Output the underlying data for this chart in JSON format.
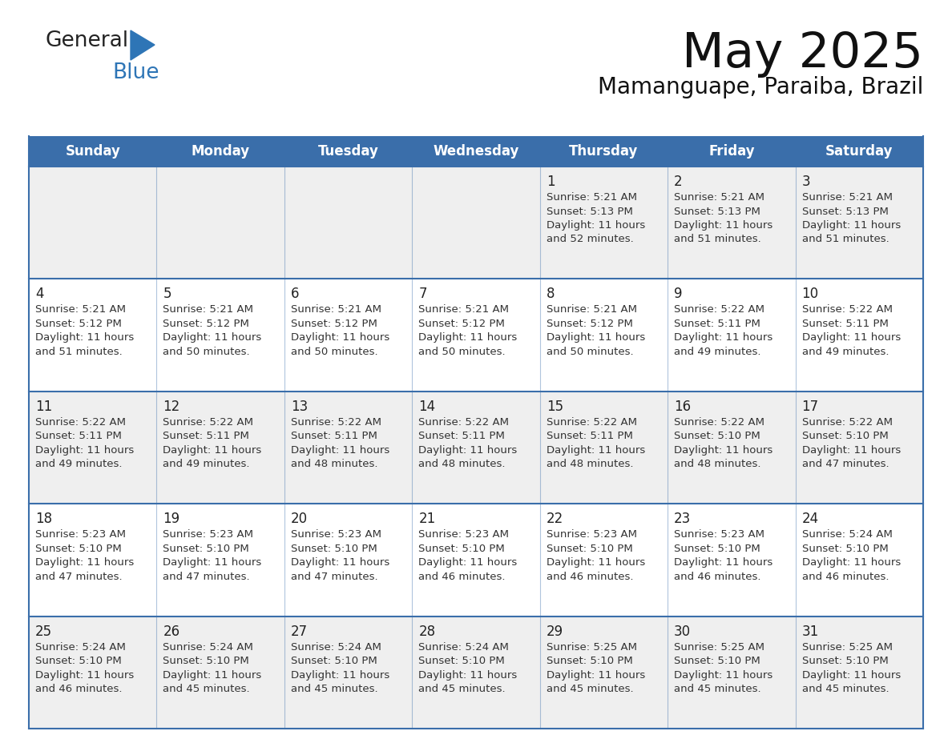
{
  "title": "May 2025",
  "subtitle": "Mamanguape, Paraiba, Brazil",
  "days_of_week": [
    "Sunday",
    "Monday",
    "Tuesday",
    "Wednesday",
    "Thursday",
    "Friday",
    "Saturday"
  ],
  "header_bg": "#3A6EAA",
  "header_text": "#FFFFFF",
  "row_bg_odd": "#EFEFEF",
  "row_bg_even": "#FFFFFF",
  "cell_border": "#3A6EAA",
  "day_number_color": "#222222",
  "text_color": "#333333",
  "title_color": "#111111",
  "subtitle_color": "#111111",
  "logo_general_color": "#222222",
  "logo_blue_color": "#2E75B6",
  "calendar": [
    [
      {
        "day": "",
        "sunrise": "",
        "sunset": "",
        "daylight": ""
      },
      {
        "day": "",
        "sunrise": "",
        "sunset": "",
        "daylight": ""
      },
      {
        "day": "",
        "sunrise": "",
        "sunset": "",
        "daylight": ""
      },
      {
        "day": "",
        "sunrise": "",
        "sunset": "",
        "daylight": ""
      },
      {
        "day": "1",
        "sunrise": "5:21 AM",
        "sunset": "5:13 PM",
        "daylight_line1": "Daylight: 11 hours",
        "daylight_line2": "and 52 minutes."
      },
      {
        "day": "2",
        "sunrise": "5:21 AM",
        "sunset": "5:13 PM",
        "daylight_line1": "Daylight: 11 hours",
        "daylight_line2": "and 51 minutes."
      },
      {
        "day": "3",
        "sunrise": "5:21 AM",
        "sunset": "5:13 PM",
        "daylight_line1": "Daylight: 11 hours",
        "daylight_line2": "and 51 minutes."
      }
    ],
    [
      {
        "day": "4",
        "sunrise": "5:21 AM",
        "sunset": "5:12 PM",
        "daylight_line1": "Daylight: 11 hours",
        "daylight_line2": "and 51 minutes."
      },
      {
        "day": "5",
        "sunrise": "5:21 AM",
        "sunset": "5:12 PM",
        "daylight_line1": "Daylight: 11 hours",
        "daylight_line2": "and 50 minutes."
      },
      {
        "day": "6",
        "sunrise": "5:21 AM",
        "sunset": "5:12 PM",
        "daylight_line1": "Daylight: 11 hours",
        "daylight_line2": "and 50 minutes."
      },
      {
        "day": "7",
        "sunrise": "5:21 AM",
        "sunset": "5:12 PM",
        "daylight_line1": "Daylight: 11 hours",
        "daylight_line2": "and 50 minutes."
      },
      {
        "day": "8",
        "sunrise": "5:21 AM",
        "sunset": "5:12 PM",
        "daylight_line1": "Daylight: 11 hours",
        "daylight_line2": "and 50 minutes."
      },
      {
        "day": "9",
        "sunrise": "5:22 AM",
        "sunset": "5:11 PM",
        "daylight_line1": "Daylight: 11 hours",
        "daylight_line2": "and 49 minutes."
      },
      {
        "day": "10",
        "sunrise": "5:22 AM",
        "sunset": "5:11 PM",
        "daylight_line1": "Daylight: 11 hours",
        "daylight_line2": "and 49 minutes."
      }
    ],
    [
      {
        "day": "11",
        "sunrise": "5:22 AM",
        "sunset": "5:11 PM",
        "daylight_line1": "Daylight: 11 hours",
        "daylight_line2": "and 49 minutes."
      },
      {
        "day": "12",
        "sunrise": "5:22 AM",
        "sunset": "5:11 PM",
        "daylight_line1": "Daylight: 11 hours",
        "daylight_line2": "and 49 minutes."
      },
      {
        "day": "13",
        "sunrise": "5:22 AM",
        "sunset": "5:11 PM",
        "daylight_line1": "Daylight: 11 hours",
        "daylight_line2": "and 48 minutes."
      },
      {
        "day": "14",
        "sunrise": "5:22 AM",
        "sunset": "5:11 PM",
        "daylight_line1": "Daylight: 11 hours",
        "daylight_line2": "and 48 minutes."
      },
      {
        "day": "15",
        "sunrise": "5:22 AM",
        "sunset": "5:11 PM",
        "daylight_line1": "Daylight: 11 hours",
        "daylight_line2": "and 48 minutes."
      },
      {
        "day": "16",
        "sunrise": "5:22 AM",
        "sunset": "5:10 PM",
        "daylight_line1": "Daylight: 11 hours",
        "daylight_line2": "and 48 minutes."
      },
      {
        "day": "17",
        "sunrise": "5:22 AM",
        "sunset": "5:10 PM",
        "daylight_line1": "Daylight: 11 hours",
        "daylight_line2": "and 47 minutes."
      }
    ],
    [
      {
        "day": "18",
        "sunrise": "5:23 AM",
        "sunset": "5:10 PM",
        "daylight_line1": "Daylight: 11 hours",
        "daylight_line2": "and 47 minutes."
      },
      {
        "day": "19",
        "sunrise": "5:23 AM",
        "sunset": "5:10 PM",
        "daylight_line1": "Daylight: 11 hours",
        "daylight_line2": "and 47 minutes."
      },
      {
        "day": "20",
        "sunrise": "5:23 AM",
        "sunset": "5:10 PM",
        "daylight_line1": "Daylight: 11 hours",
        "daylight_line2": "and 47 minutes."
      },
      {
        "day": "21",
        "sunrise": "5:23 AM",
        "sunset": "5:10 PM",
        "daylight_line1": "Daylight: 11 hours",
        "daylight_line2": "and 46 minutes."
      },
      {
        "day": "22",
        "sunrise": "5:23 AM",
        "sunset": "5:10 PM",
        "daylight_line1": "Daylight: 11 hours",
        "daylight_line2": "and 46 minutes."
      },
      {
        "day": "23",
        "sunrise": "5:23 AM",
        "sunset": "5:10 PM",
        "daylight_line1": "Daylight: 11 hours",
        "daylight_line2": "and 46 minutes."
      },
      {
        "day": "24",
        "sunrise": "5:24 AM",
        "sunset": "5:10 PM",
        "daylight_line1": "Daylight: 11 hours",
        "daylight_line2": "and 46 minutes."
      }
    ],
    [
      {
        "day": "25",
        "sunrise": "5:24 AM",
        "sunset": "5:10 PM",
        "daylight_line1": "Daylight: 11 hours",
        "daylight_line2": "and 46 minutes."
      },
      {
        "day": "26",
        "sunrise": "5:24 AM",
        "sunset": "5:10 PM",
        "daylight_line1": "Daylight: 11 hours",
        "daylight_line2": "and 45 minutes."
      },
      {
        "day": "27",
        "sunrise": "5:24 AM",
        "sunset": "5:10 PM",
        "daylight_line1": "Daylight: 11 hours",
        "daylight_line2": "and 45 minutes."
      },
      {
        "day": "28",
        "sunrise": "5:24 AM",
        "sunset": "5:10 PM",
        "daylight_line1": "Daylight: 11 hours",
        "daylight_line2": "and 45 minutes."
      },
      {
        "day": "29",
        "sunrise": "5:25 AM",
        "sunset": "5:10 PM",
        "daylight_line1": "Daylight: 11 hours",
        "daylight_line2": "and 45 minutes."
      },
      {
        "day": "30",
        "sunrise": "5:25 AM",
        "sunset": "5:10 PM",
        "daylight_line1": "Daylight: 11 hours",
        "daylight_line2": "and 45 minutes."
      },
      {
        "day": "31",
        "sunrise": "5:25 AM",
        "sunset": "5:10 PM",
        "daylight_line1": "Daylight: 11 hours",
        "daylight_line2": "and 45 minutes."
      }
    ]
  ]
}
